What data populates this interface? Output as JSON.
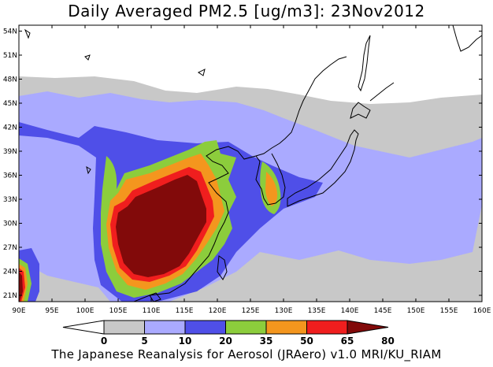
{
  "title": "Daily Averaged PM2.5 [ug/m3]: 23Nov2012",
  "footer": "The Japanese Reanalysis for Aerosol (JRAero) v1.0 MRI/KU_RIAM",
  "lat_labels": [
    "21N",
    "24N",
    "27N",
    "30N",
    "33N",
    "36N",
    "39N",
    "42N",
    "45N",
    "48N",
    "51N",
    "54N"
  ],
  "lon_labels": [
    "90E",
    "95E",
    "100E",
    "105E",
    "110E",
    "115E",
    "120E",
    "125E",
    "130E",
    "135E",
    "140E",
    "145E",
    "150E",
    "155E",
    "160E"
  ],
  "colorbar": {
    "labels": [
      "0",
      "5",
      "10",
      "20",
      "35",
      "50",
      "65",
      "80"
    ],
    "colors": [
      "#ffffff",
      "#c8c8c8",
      "#aaaaff",
      "#4f4fe8",
      "#8ccd3c",
      "#f4961e",
      "#f01e1e",
      "#820a0a"
    ]
  }
}
